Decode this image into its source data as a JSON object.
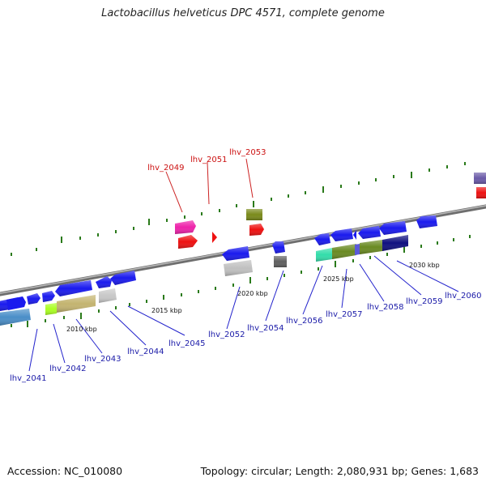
{
  "title": "Lactobacillus helveticus DPC 4571, complete genome",
  "footer": {
    "accession": "Accession: NC_010080",
    "summary": "Topology: circular; Length: 2,080,931 bp; Genes: 1,683"
  },
  "colors": {
    "backbone": "#8a8a8a",
    "tick": "#2a7a1a",
    "gene_label": "#1a1aa8",
    "gene_label_alt": "#cc1111",
    "leader": "#2222cc",
    "leader_alt": "#cc2222",
    "scale_label": "#111111"
  },
  "scale_labels": [
    "2010 kbp",
    "2015 kbp",
    "2020 kbp",
    "2025 kbp",
    "2030 kbp"
  ],
  "gene_labels": [
    {
      "id": "lhv_2041",
      "text": "lhv_2041",
      "highlight": false
    },
    {
      "id": "lhv_2042",
      "text": "lhv_2042",
      "highlight": false
    },
    {
      "id": "lhv_2043",
      "text": "lhv_2043",
      "highlight": false
    },
    {
      "id": "lhv_2044",
      "text": "lhv_2044",
      "highlight": false
    },
    {
      "id": "lhv_2045",
      "text": "lhv_2045",
      "highlight": false
    },
    {
      "id": "lhv_2049",
      "text": "lhv_2049",
      "highlight": true
    },
    {
      "id": "lhv_2051",
      "text": "lhv_2051",
      "highlight": true
    },
    {
      "id": "lhv_2052",
      "text": "lhv_2052",
      "highlight": false
    },
    {
      "id": "lhv_2053",
      "text": "lhv_2053",
      "highlight": true
    },
    {
      "id": "lhv_2054",
      "text": "lhv_2054",
      "highlight": false
    },
    {
      "id": "lhv_2056",
      "text": "lhv_2056",
      "highlight": false
    },
    {
      "id": "lhv_2057",
      "text": "lhv_2057",
      "highlight": false
    },
    {
      "id": "lhv_2058",
      "text": "lhv_2058",
      "highlight": false
    },
    {
      "id": "lhv_2059",
      "text": "lhv_2059",
      "highlight": false
    },
    {
      "id": "lhv_2060",
      "text": "lhv_2060",
      "highlight": false
    }
  ]
}
